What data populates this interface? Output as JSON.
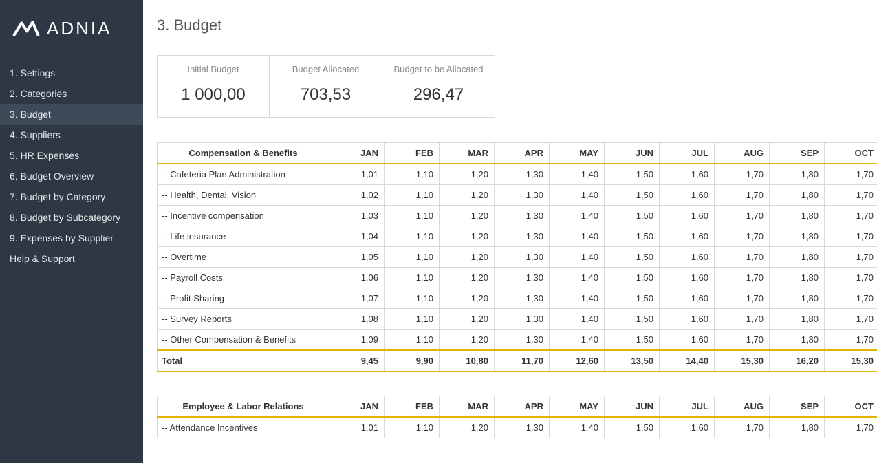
{
  "brand": "ADNIA",
  "page_title": "3. Budget",
  "nav": {
    "items": [
      "1. Settings",
      "2. Categories",
      "3. Budget",
      "4. Suppliers",
      "5. HR Expenses",
      "6. Budget Overview",
      "7. Budget by Category",
      "8. Budget by Subcategory",
      "9. Expenses by Supplier",
      "Help & Support"
    ],
    "active_index": 2
  },
  "cards": [
    {
      "label": "Initial Budget",
      "value": "1 000,00"
    },
    {
      "label": "Budget Allocated",
      "value": "703,53"
    },
    {
      "label": "Budget to be Allocated",
      "value": "296,47"
    }
  ],
  "months": [
    "JAN",
    "FEB",
    "MAR",
    "APR",
    "MAY",
    "JUN",
    "JUL",
    "AUG",
    "SEP",
    "OCT"
  ],
  "tables": [
    {
      "title": "Compensation & Benefits",
      "rows": [
        {
          "name": "-- Cafeteria Plan Administration",
          "vals": [
            "1,01",
            "1,10",
            "1,20",
            "1,30",
            "1,40",
            "1,50",
            "1,60",
            "1,70",
            "1,80",
            "1,70"
          ]
        },
        {
          "name": "-- Health, Dental, Vision",
          "vals": [
            "1,02",
            "1,10",
            "1,20",
            "1,30",
            "1,40",
            "1,50",
            "1,60",
            "1,70",
            "1,80",
            "1,70"
          ]
        },
        {
          "name": "-- Incentive compensation",
          "vals": [
            "1,03",
            "1,10",
            "1,20",
            "1,30",
            "1,40",
            "1,50",
            "1,60",
            "1,70",
            "1,80",
            "1,70"
          ]
        },
        {
          "name": "-- Life insurance",
          "vals": [
            "1,04",
            "1,10",
            "1,20",
            "1,30",
            "1,40",
            "1,50",
            "1,60",
            "1,70",
            "1,80",
            "1,70"
          ]
        },
        {
          "name": "-- Overtime",
          "vals": [
            "1,05",
            "1,10",
            "1,20",
            "1,30",
            "1,40",
            "1,50",
            "1,60",
            "1,70",
            "1,80",
            "1,70"
          ]
        },
        {
          "name": "-- Payroll Costs",
          "vals": [
            "1,06",
            "1,10",
            "1,20",
            "1,30",
            "1,40",
            "1,50",
            "1,60",
            "1,70",
            "1,80",
            "1,70"
          ]
        },
        {
          "name": "-- Profit Sharing",
          "vals": [
            "1,07",
            "1,10",
            "1,20",
            "1,30",
            "1,40",
            "1,50",
            "1,60",
            "1,70",
            "1,80",
            "1,70"
          ]
        },
        {
          "name": "-- Survey Reports",
          "vals": [
            "1,08",
            "1,10",
            "1,20",
            "1,30",
            "1,40",
            "1,50",
            "1,60",
            "1,70",
            "1,80",
            "1,70"
          ]
        },
        {
          "name": "-- Other Compensation & Benefits",
          "vals": [
            "1,09",
            "1,10",
            "1,20",
            "1,30",
            "1,40",
            "1,50",
            "1,60",
            "1,70",
            "1,80",
            "1,70"
          ]
        }
      ],
      "total": {
        "label": "Total",
        "vals": [
          "9,45",
          "9,90",
          "10,80",
          "11,70",
          "12,60",
          "13,50",
          "14,40",
          "15,30",
          "16,20",
          "15,30"
        ]
      }
    },
    {
      "title": "Employee & Labor Relations",
      "rows": [
        {
          "name": "-- Attendance Incentives",
          "vals": [
            "1,01",
            "1,10",
            "1,20",
            "1,30",
            "1,40",
            "1,50",
            "1,60",
            "1,70",
            "1,80",
            "1,70"
          ]
        }
      ]
    }
  ],
  "colors": {
    "sidebar_bg": "#2d3844",
    "sidebar_active_bg": "#3d4a58",
    "accent_rule": "#e1b400",
    "border": "#d9d9d9",
    "muted_text": "#888"
  }
}
